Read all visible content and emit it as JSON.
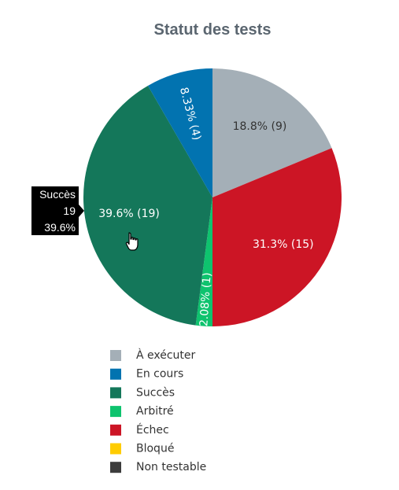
{
  "chart_data": {
    "type": "pie",
    "title": "Statut des tests",
    "slices": [
      {
        "name": "À exécuter",
        "value": 9,
        "label": "18.8% (9)",
        "color": "#a4afb7",
        "text_color": "#333333"
      },
      {
        "name": "Échec",
        "value": 15,
        "label": "31.3% (15)",
        "color": "#cc1525",
        "text_color": "#ffffff"
      },
      {
        "name": "Arbitré",
        "value": 1,
        "label": "2.08% (1)",
        "color": "#0ec36e",
        "text_color": "#ffffff"
      },
      {
        "name": "Succès",
        "value": 19,
        "label": "39.6% (19)",
        "color": "#14775a",
        "text_color": "#ffffff"
      },
      {
        "name": "En cours",
        "value": 4,
        "label": "8.33% (4)",
        "color": "#0273b0",
        "text_color": "#ffffff"
      }
    ],
    "legend": {
      "placement": "bottom",
      "items": [
        {
          "name": "À exécuter",
          "color": "#a4afb7"
        },
        {
          "name": "En cours",
          "color": "#0273b0"
        },
        {
          "name": "Succès",
          "color": "#14775a"
        },
        {
          "name": "Arbitré",
          "color": "#0ec36e"
        },
        {
          "name": "Échec",
          "color": "#cc1525"
        },
        {
          "name": "Bloqué",
          "color": "#ffcc00"
        },
        {
          "name": "Non testable",
          "color": "#3c3c3c"
        }
      ]
    },
    "tooltip": {
      "series": "Succès",
      "count": "19",
      "percent": "39.6%"
    }
  }
}
